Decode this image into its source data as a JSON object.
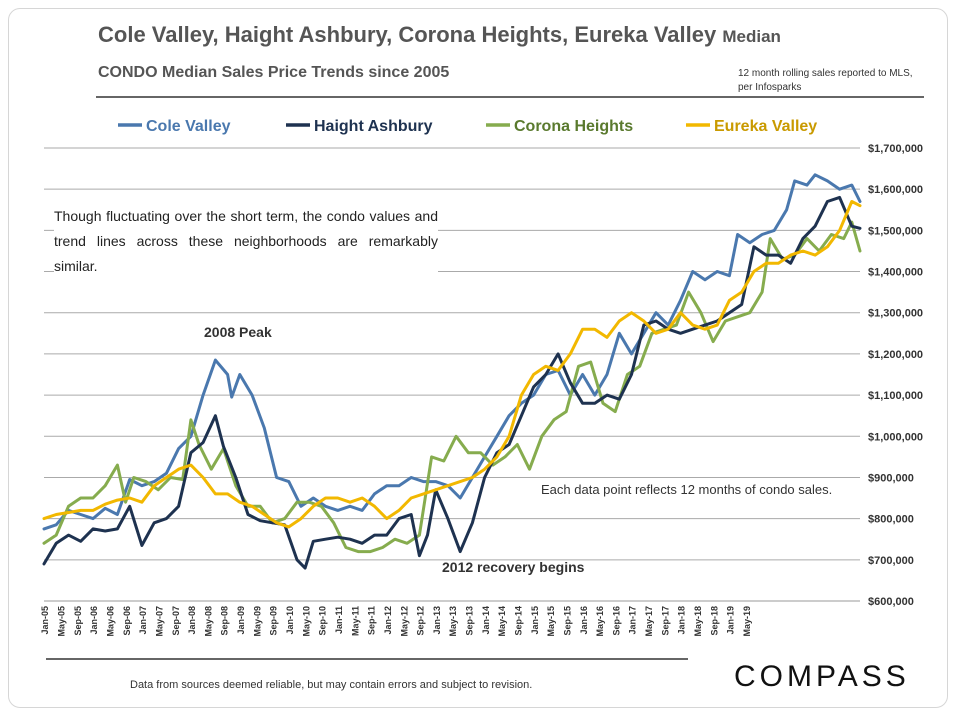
{
  "header": {
    "title": "Cole Valley, Haight Ashbury, Corona Heights, Eureka Valley",
    "title_suffix": "Median",
    "subtitle": "CONDO Median Sales Price Trends since 2005",
    "source_note": "12 month rolling sales reported to MLS, per Infosparks"
  },
  "commentary": "Though fluctuating over the short term, the condo values and trend lines across these neighborhoods are remarkably similar.",
  "footer": {
    "disclaimer": "Data from sources deemed reliable, but may contain errors and subject to revision.",
    "logo": "COMPASS"
  },
  "chart_data": {
    "type": "line",
    "title": "CONDO Median Sales Price Trends since 2005",
    "xlabel": "",
    "ylabel": "",
    "ylim": [
      600000,
      1700000
    ],
    "grid": true,
    "legend_position": "top",
    "y_ticks": [
      "$600,000",
      "$700,000",
      "$800,000",
      "$900,000",
      "$1,000,000",
      "$1,100,000",
      "$1,200,000",
      "$1,300,000",
      "$1,400,000",
      "$1,500,000",
      "$1,600,000",
      "$1,700,000"
    ],
    "x_ticks": [
      "Jan-05",
      "May-05",
      "Sep-05",
      "Jan-06",
      "May-06",
      "Sep-06",
      "Jan-07",
      "May-07",
      "Sep-07",
      "Jan-08",
      "May-08",
      "Sep-08",
      "Jan-09",
      "May-09",
      "Sep-09",
      "Jan-10",
      "May-10",
      "Sep-10",
      "Jan-11",
      "May-11",
      "Sep-11",
      "Jan-12",
      "May-12",
      "Sep-12",
      "Jan-13",
      "May-13",
      "Sep-13",
      "Jan-14",
      "May-14",
      "Sep-14",
      "Jan-15",
      "May-15",
      "Sep-15",
      "Jan-16",
      "May-16",
      "Sep-16",
      "Jan-17",
      "May-17",
      "Sep-17",
      "Jan-18",
      "May-18",
      "Sep-18",
      "Jan-19",
      "May-19"
    ],
    "annotations": [
      "2008 Peak",
      "2012 recovery begins",
      "Each data point reflects 12 months of condo sales."
    ],
    "series": [
      {
        "name": "Cole Valley",
        "color": "#4a78ae",
        "points": [
          [
            0,
            775000
          ],
          [
            3,
            785000
          ],
          [
            6,
            820000
          ],
          [
            9,
            810000
          ],
          [
            12,
            800000
          ],
          [
            15,
            825000
          ],
          [
            18,
            810000
          ],
          [
            21,
            895000
          ],
          [
            24,
            880000
          ],
          [
            27,
            890000
          ],
          [
            30,
            910000
          ],
          [
            33,
            970000
          ],
          [
            36,
            1000000
          ],
          [
            39,
            1100000
          ],
          [
            42,
            1185000
          ],
          [
            45,
            1150000
          ],
          [
            46,
            1095000
          ],
          [
            48,
            1150000
          ],
          [
            51,
            1100000
          ],
          [
            54,
            1020000
          ],
          [
            57,
            900000
          ],
          [
            60,
            890000
          ],
          [
            63,
            830000
          ],
          [
            66,
            850000
          ],
          [
            69,
            830000
          ],
          [
            72,
            820000
          ],
          [
            75,
            830000
          ],
          [
            78,
            820000
          ],
          [
            81,
            860000
          ],
          [
            84,
            880000
          ],
          [
            87,
            880000
          ],
          [
            90,
            900000
          ],
          [
            93,
            890000
          ],
          [
            96,
            890000
          ],
          [
            99,
            880000
          ],
          [
            102,
            850000
          ],
          [
            105,
            900000
          ],
          [
            108,
            950000
          ],
          [
            111,
            1000000
          ],
          [
            114,
            1050000
          ],
          [
            117,
            1080000
          ],
          [
            120,
            1100000
          ],
          [
            123,
            1150000
          ],
          [
            126,
            1160000
          ],
          [
            129,
            1100000
          ],
          [
            132,
            1150000
          ],
          [
            135,
            1100000
          ],
          [
            138,
            1150000
          ],
          [
            141,
            1250000
          ],
          [
            144,
            1200000
          ],
          [
            147,
            1250000
          ],
          [
            150,
            1300000
          ],
          [
            153,
            1270000
          ],
          [
            156,
            1330000
          ],
          [
            159,
            1400000
          ],
          [
            162,
            1380000
          ],
          [
            165,
            1400000
          ],
          [
            168,
            1390000
          ],
          [
            170,
            1490000
          ],
          [
            173,
            1470000
          ],
          [
            176,
            1490000
          ],
          [
            179,
            1500000
          ],
          [
            182,
            1550000
          ],
          [
            184,
            1620000
          ],
          [
            187,
            1610000
          ],
          [
            189,
            1635000
          ],
          [
            192,
            1620000
          ],
          [
            195,
            1600000
          ],
          [
            198,
            1610000
          ],
          [
            200,
            1570000
          ]
        ]
      },
      {
        "name": "Haight Ashbury",
        "color": "#1e3250",
        "points": [
          [
            0,
            690000
          ],
          [
            3,
            740000
          ],
          [
            6,
            760000
          ],
          [
            9,
            745000
          ],
          [
            12,
            775000
          ],
          [
            15,
            770000
          ],
          [
            18,
            775000
          ],
          [
            21,
            830000
          ],
          [
            24,
            735000
          ],
          [
            27,
            790000
          ],
          [
            30,
            800000
          ],
          [
            33,
            830000
          ],
          [
            36,
            960000
          ],
          [
            39,
            985000
          ],
          [
            42,
            1050000
          ],
          [
            44,
            975000
          ],
          [
            47,
            900000
          ],
          [
            50,
            810000
          ],
          [
            53,
            795000
          ],
          [
            56,
            790000
          ],
          [
            59,
            785000
          ],
          [
            62,
            700000
          ],
          [
            64,
            680000
          ],
          [
            66,
            745000
          ],
          [
            69,
            750000
          ],
          [
            72,
            755000
          ],
          [
            75,
            750000
          ],
          [
            78,
            740000
          ],
          [
            81,
            760000
          ],
          [
            84,
            760000
          ],
          [
            87,
            800000
          ],
          [
            90,
            810000
          ],
          [
            92,
            710000
          ],
          [
            94,
            760000
          ],
          [
            96,
            870000
          ],
          [
            99,
            800000
          ],
          [
            102,
            720000
          ],
          [
            105,
            790000
          ],
          [
            108,
            900000
          ],
          [
            111,
            960000
          ],
          [
            114,
            980000
          ],
          [
            117,
            1050000
          ],
          [
            120,
            1120000
          ],
          [
            123,
            1150000
          ],
          [
            126,
            1200000
          ],
          [
            129,
            1130000
          ],
          [
            132,
            1080000
          ],
          [
            135,
            1080000
          ],
          [
            138,
            1100000
          ],
          [
            141,
            1090000
          ],
          [
            144,
            1150000
          ],
          [
            147,
            1270000
          ],
          [
            150,
            1280000
          ],
          [
            153,
            1260000
          ],
          [
            156,
            1250000
          ],
          [
            159,
            1260000
          ],
          [
            162,
            1270000
          ],
          [
            165,
            1280000
          ],
          [
            168,
            1300000
          ],
          [
            171,
            1320000
          ],
          [
            174,
            1460000
          ],
          [
            177,
            1440000
          ],
          [
            180,
            1440000
          ],
          [
            183,
            1420000
          ],
          [
            186,
            1480000
          ],
          [
            189,
            1510000
          ],
          [
            192,
            1570000
          ],
          [
            195,
            1580000
          ],
          [
            198,
            1510000
          ],
          [
            200,
            1505000
          ]
        ]
      },
      {
        "name": "Corona Heights",
        "color": "#86ac4e",
        "points": [
          [
            0,
            740000
          ],
          [
            3,
            760000
          ],
          [
            6,
            830000
          ],
          [
            9,
            850000
          ],
          [
            12,
            850000
          ],
          [
            15,
            880000
          ],
          [
            18,
            930000
          ],
          [
            20,
            840000
          ],
          [
            22,
            900000
          ],
          [
            25,
            890000
          ],
          [
            28,
            870000
          ],
          [
            31,
            900000
          ],
          [
            34,
            895000
          ],
          [
            36,
            1040000
          ],
          [
            38,
            980000
          ],
          [
            41,
            920000
          ],
          [
            44,
            970000
          ],
          [
            47,
            880000
          ],
          [
            50,
            830000
          ],
          [
            53,
            830000
          ],
          [
            56,
            790000
          ],
          [
            59,
            800000
          ],
          [
            62,
            840000
          ],
          [
            65,
            840000
          ],
          [
            68,
            830000
          ],
          [
            71,
            790000
          ],
          [
            74,
            730000
          ],
          [
            77,
            720000
          ],
          [
            80,
            720000
          ],
          [
            83,
            730000
          ],
          [
            86,
            750000
          ],
          [
            89,
            740000
          ],
          [
            92,
            760000
          ],
          [
            95,
            950000
          ],
          [
            98,
            940000
          ],
          [
            101,
            1000000
          ],
          [
            104,
            960000
          ],
          [
            107,
            960000
          ],
          [
            110,
            930000
          ],
          [
            113,
            950000
          ],
          [
            116,
            980000
          ],
          [
            119,
            920000
          ],
          [
            122,
            1000000
          ],
          [
            125,
            1040000
          ],
          [
            128,
            1060000
          ],
          [
            131,
            1170000
          ],
          [
            134,
            1180000
          ],
          [
            137,
            1080000
          ],
          [
            140,
            1060000
          ],
          [
            143,
            1150000
          ],
          [
            146,
            1170000
          ],
          [
            149,
            1250000
          ],
          [
            152,
            1260000
          ],
          [
            155,
            1270000
          ],
          [
            158,
            1350000
          ],
          [
            161,
            1300000
          ],
          [
            164,
            1230000
          ],
          [
            167,
            1280000
          ],
          [
            170,
            1290000
          ],
          [
            173,
            1300000
          ],
          [
            176,
            1350000
          ],
          [
            178,
            1480000
          ],
          [
            181,
            1430000
          ],
          [
            184,
            1440000
          ],
          [
            187,
            1480000
          ],
          [
            190,
            1450000
          ],
          [
            193,
            1490000
          ],
          [
            196,
            1480000
          ],
          [
            198,
            1520000
          ],
          [
            200,
            1450000
          ]
        ]
      },
      {
        "name": "Eureka Valley",
        "color": "#f2b800",
        "points": [
          [
            0,
            800000
          ],
          [
            3,
            810000
          ],
          [
            6,
            815000
          ],
          [
            9,
            820000
          ],
          [
            12,
            820000
          ],
          [
            15,
            835000
          ],
          [
            18,
            845000
          ],
          [
            21,
            850000
          ],
          [
            24,
            840000
          ],
          [
            27,
            880000
          ],
          [
            30,
            900000
          ],
          [
            33,
            920000
          ],
          [
            36,
            930000
          ],
          [
            39,
            900000
          ],
          [
            42,
            860000
          ],
          [
            45,
            860000
          ],
          [
            48,
            840000
          ],
          [
            51,
            830000
          ],
          [
            54,
            810000
          ],
          [
            57,
            790000
          ],
          [
            60,
            780000
          ],
          [
            63,
            800000
          ],
          [
            66,
            830000
          ],
          [
            69,
            850000
          ],
          [
            72,
            850000
          ],
          [
            75,
            840000
          ],
          [
            78,
            850000
          ],
          [
            81,
            830000
          ],
          [
            84,
            800000
          ],
          [
            87,
            820000
          ],
          [
            90,
            850000
          ],
          [
            93,
            860000
          ],
          [
            96,
            870000
          ],
          [
            99,
            880000
          ],
          [
            102,
            890000
          ],
          [
            105,
            900000
          ],
          [
            108,
            920000
          ],
          [
            111,
            950000
          ],
          [
            114,
            1000000
          ],
          [
            117,
            1100000
          ],
          [
            120,
            1150000
          ],
          [
            123,
            1170000
          ],
          [
            126,
            1160000
          ],
          [
            129,
            1200000
          ],
          [
            132,
            1260000
          ],
          [
            135,
            1260000
          ],
          [
            138,
            1240000
          ],
          [
            141,
            1280000
          ],
          [
            144,
            1300000
          ],
          [
            147,
            1280000
          ],
          [
            150,
            1250000
          ],
          [
            153,
            1260000
          ],
          [
            156,
            1300000
          ],
          [
            159,
            1270000
          ],
          [
            162,
            1260000
          ],
          [
            165,
            1270000
          ],
          [
            168,
            1330000
          ],
          [
            171,
            1350000
          ],
          [
            174,
            1400000
          ],
          [
            177,
            1420000
          ],
          [
            180,
            1420000
          ],
          [
            183,
            1440000
          ],
          [
            186,
            1450000
          ],
          [
            189,
            1440000
          ],
          [
            192,
            1460000
          ],
          [
            195,
            1500000
          ],
          [
            198,
            1570000
          ],
          [
            200,
            1560000
          ]
        ]
      }
    ]
  }
}
